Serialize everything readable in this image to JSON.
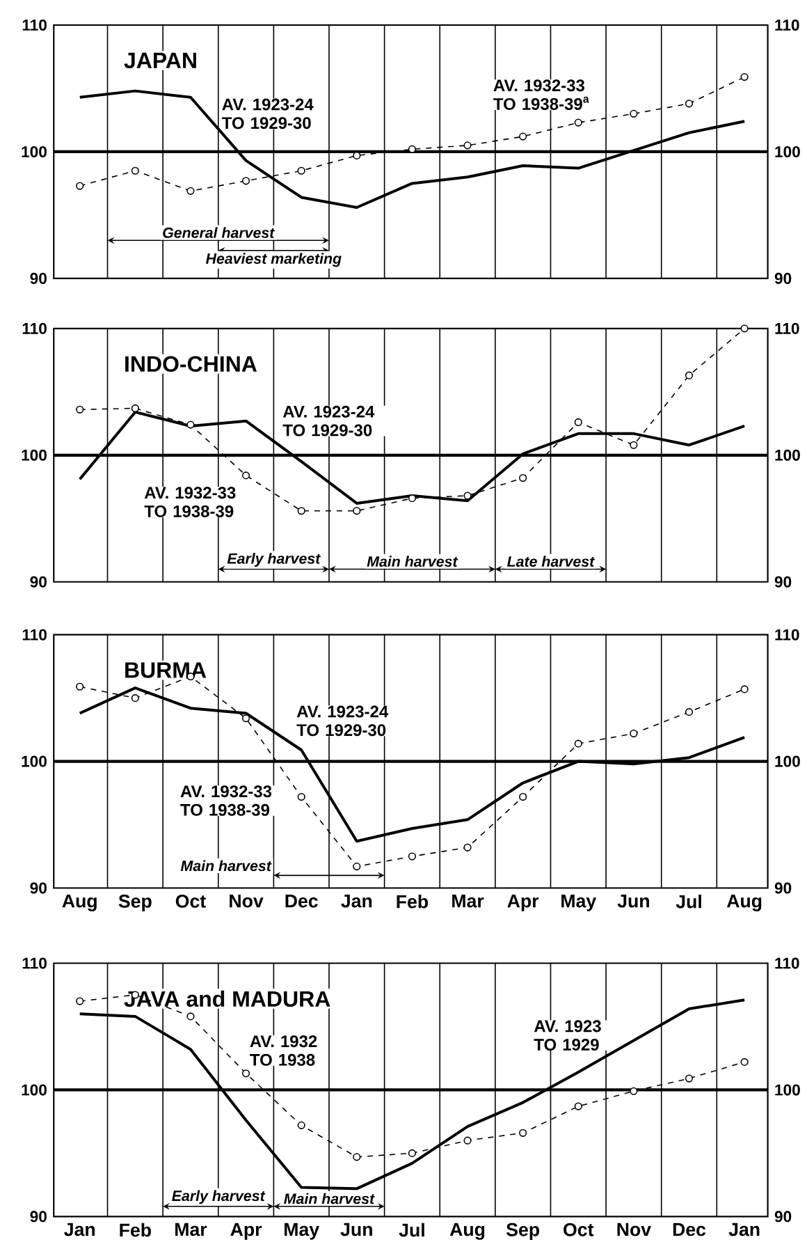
{
  "chart_data": [
    {
      "type": "line",
      "title": "JAPAN",
      "categories": [
        null,
        null,
        null,
        null,
        null,
        null,
        null,
        null,
        null,
        null,
        null,
        null,
        null
      ],
      "tick_labels": "y",
      "series": [
        {
          "name": "AV. 1923-24 TO 1929-30",
          "color": "#000000",
          "line_style": "solid",
          "marker": "none",
          "values": [
            104.3,
            104.8,
            104.3,
            99.3,
            96.4,
            95.6,
            97.5,
            98.0,
            98.9,
            98.7,
            100.1,
            101.5,
            102.4
          ]
        },
        {
          "name": "AV. 1932-33 TO 1938-39$^{a}$",
          "color": "#000000",
          "line_style": "dashed",
          "marker": "circle",
          "values": [
            97.3,
            98.5,
            96.9,
            97.7,
            98.5,
            99.7,
            100.2,
            100.5,
            101.2,
            102.3,
            103.0,
            103.8,
            105.9
          ]
        }
      ],
      "ylim": [
        90,
        110
      ],
      "yticks": [
        90,
        100,
        110
      ],
      "y2lim": [
        90,
        110
      ],
      "y2ticks": [
        90,
        100,
        110
      ],
      "grid": "x",
      "ref_lines": [
        {
          "axis": "y",
          "value": 100
        }
      ],
      "annotations": [
        "General harvest",
        "Heaviest marketing"
      ]
    },
    {
      "type": "line",
      "title": "INDO-CHINA",
      "categories": [
        null,
        null,
        null,
        null,
        null,
        null,
        null,
        null,
        null,
        null,
        null,
        null,
        null
      ],
      "tick_labels": "y",
      "series": [
        {
          "name": "AV. 1923-24 TO 1929-30",
          "color": "#000000",
          "line_style": "solid",
          "marker": "none",
          "values": [
            98.1,
            103.4,
            102.3,
            102.7,
            99.5,
            96.2,
            96.8,
            96.4,
            100.1,
            101.7,
            101.7,
            100.8,
            102.3
          ]
        },
        {
          "name": "AV. 1932-33 TO 1938-39",
          "color": "#000000",
          "line_style": "dashed",
          "marker": "circle",
          "values": [
            103.6,
            103.7,
            102.4,
            98.4,
            95.6,
            95.6,
            96.6,
            96.8,
            98.2,
            102.6,
            100.8,
            106.3,
            110
          ]
        }
      ],
      "ylim": [
        90,
        110
      ],
      "yticks": [
        90,
        100,
        110
      ],
      "y2lim": [
        90,
        110
      ],
      "y2ticks": [
        90,
        100,
        110
      ],
      "grid": "x",
      "ref_lines": [
        {
          "axis": "y",
          "value": 100
        }
      ],
      "annotations": [
        "Early harvest",
        "Main harvest",
        "Late harvest"
      ]
    },
    {
      "type": "line",
      "title": "BURMA",
      "categories": [
        "Aug",
        "Sep",
        "Oct",
        "Nov",
        "Dec",
        "Jan",
        "Feb",
        "Mar",
        "Apr",
        "May",
        "Jun",
        "Jul",
        "Aug"
      ],
      "series": [
        {
          "name": "AV. 1923-24 TO 1929-30",
          "color": "#000000",
          "line_style": "solid",
          "marker": "none",
          "values": [
            103.8,
            105.8,
            104.2,
            103.8,
            100.9,
            93.7,
            94.7,
            95.4,
            98.3,
            100.0,
            99.8,
            100.3,
            101.9
          ]
        },
        {
          "name": "AV. 1932-33 TO 1938-39",
          "color": "#000000",
          "line_style": "dashed",
          "marker": "circle",
          "values": [
            105.9,
            105.0,
            106.7,
            103.4,
            97.2,
            91.7,
            92.5,
            93.2,
            97.2,
            101.4,
            102.2,
            103.9,
            105.7
          ]
        }
      ],
      "ylim": [
        90,
        110
      ],
      "yticks": [
        90,
        100,
        110
      ],
      "y2lim": [
        90,
        110
      ],
      "y2ticks": [
        90,
        100,
        110
      ],
      "grid": "x",
      "ref_lines": [
        {
          "axis": "y",
          "value": 100
        }
      ],
      "annotations": [
        "Main harvest"
      ]
    },
    {
      "type": "line",
      "title": "JAVA and MADURA",
      "categories": [
        "Jan",
        "Feb",
        "Mar",
        "Apr",
        "May",
        "Jun",
        "Jul",
        "Aug",
        "Sep",
        "Oct",
        "Nov",
        "Dec",
        "Jan"
      ],
      "series": [
        {
          "name": "AV. 1923 TO 1929",
          "color": "#000000",
          "line_style": "solid",
          "marker": "none",
          "values": [
            106.0,
            105.8,
            103.2,
            97.6,
            92.3,
            92.2,
            94.2,
            97.1,
            99.0,
            101.4,
            103.9,
            106.4,
            107.1
          ]
        },
        {
          "name": "AV. 1932 TO 1938",
          "color": "#000000",
          "line_style": "dashed",
          "marker": "circle",
          "values": [
            107.0,
            107.5,
            105.8,
            101.3,
            97.2,
            94.7,
            95.0,
            96.0,
            96.6,
            98.7,
            99.9,
            100.9,
            102.2
          ]
        }
      ],
      "ylim": [
        90,
        110
      ],
      "yticks": [
        90,
        100,
        110
      ],
      "y2lim": [
        90,
        110
      ],
      "y2ticks": [
        90,
        100,
        110
      ],
      "grid": "x",
      "ref_lines": [
        {
          "axis": "y",
          "value": 100
        }
      ],
      "annotations": [
        "Early harvest",
        "Main harvest"
      ]
    }
  ]
}
